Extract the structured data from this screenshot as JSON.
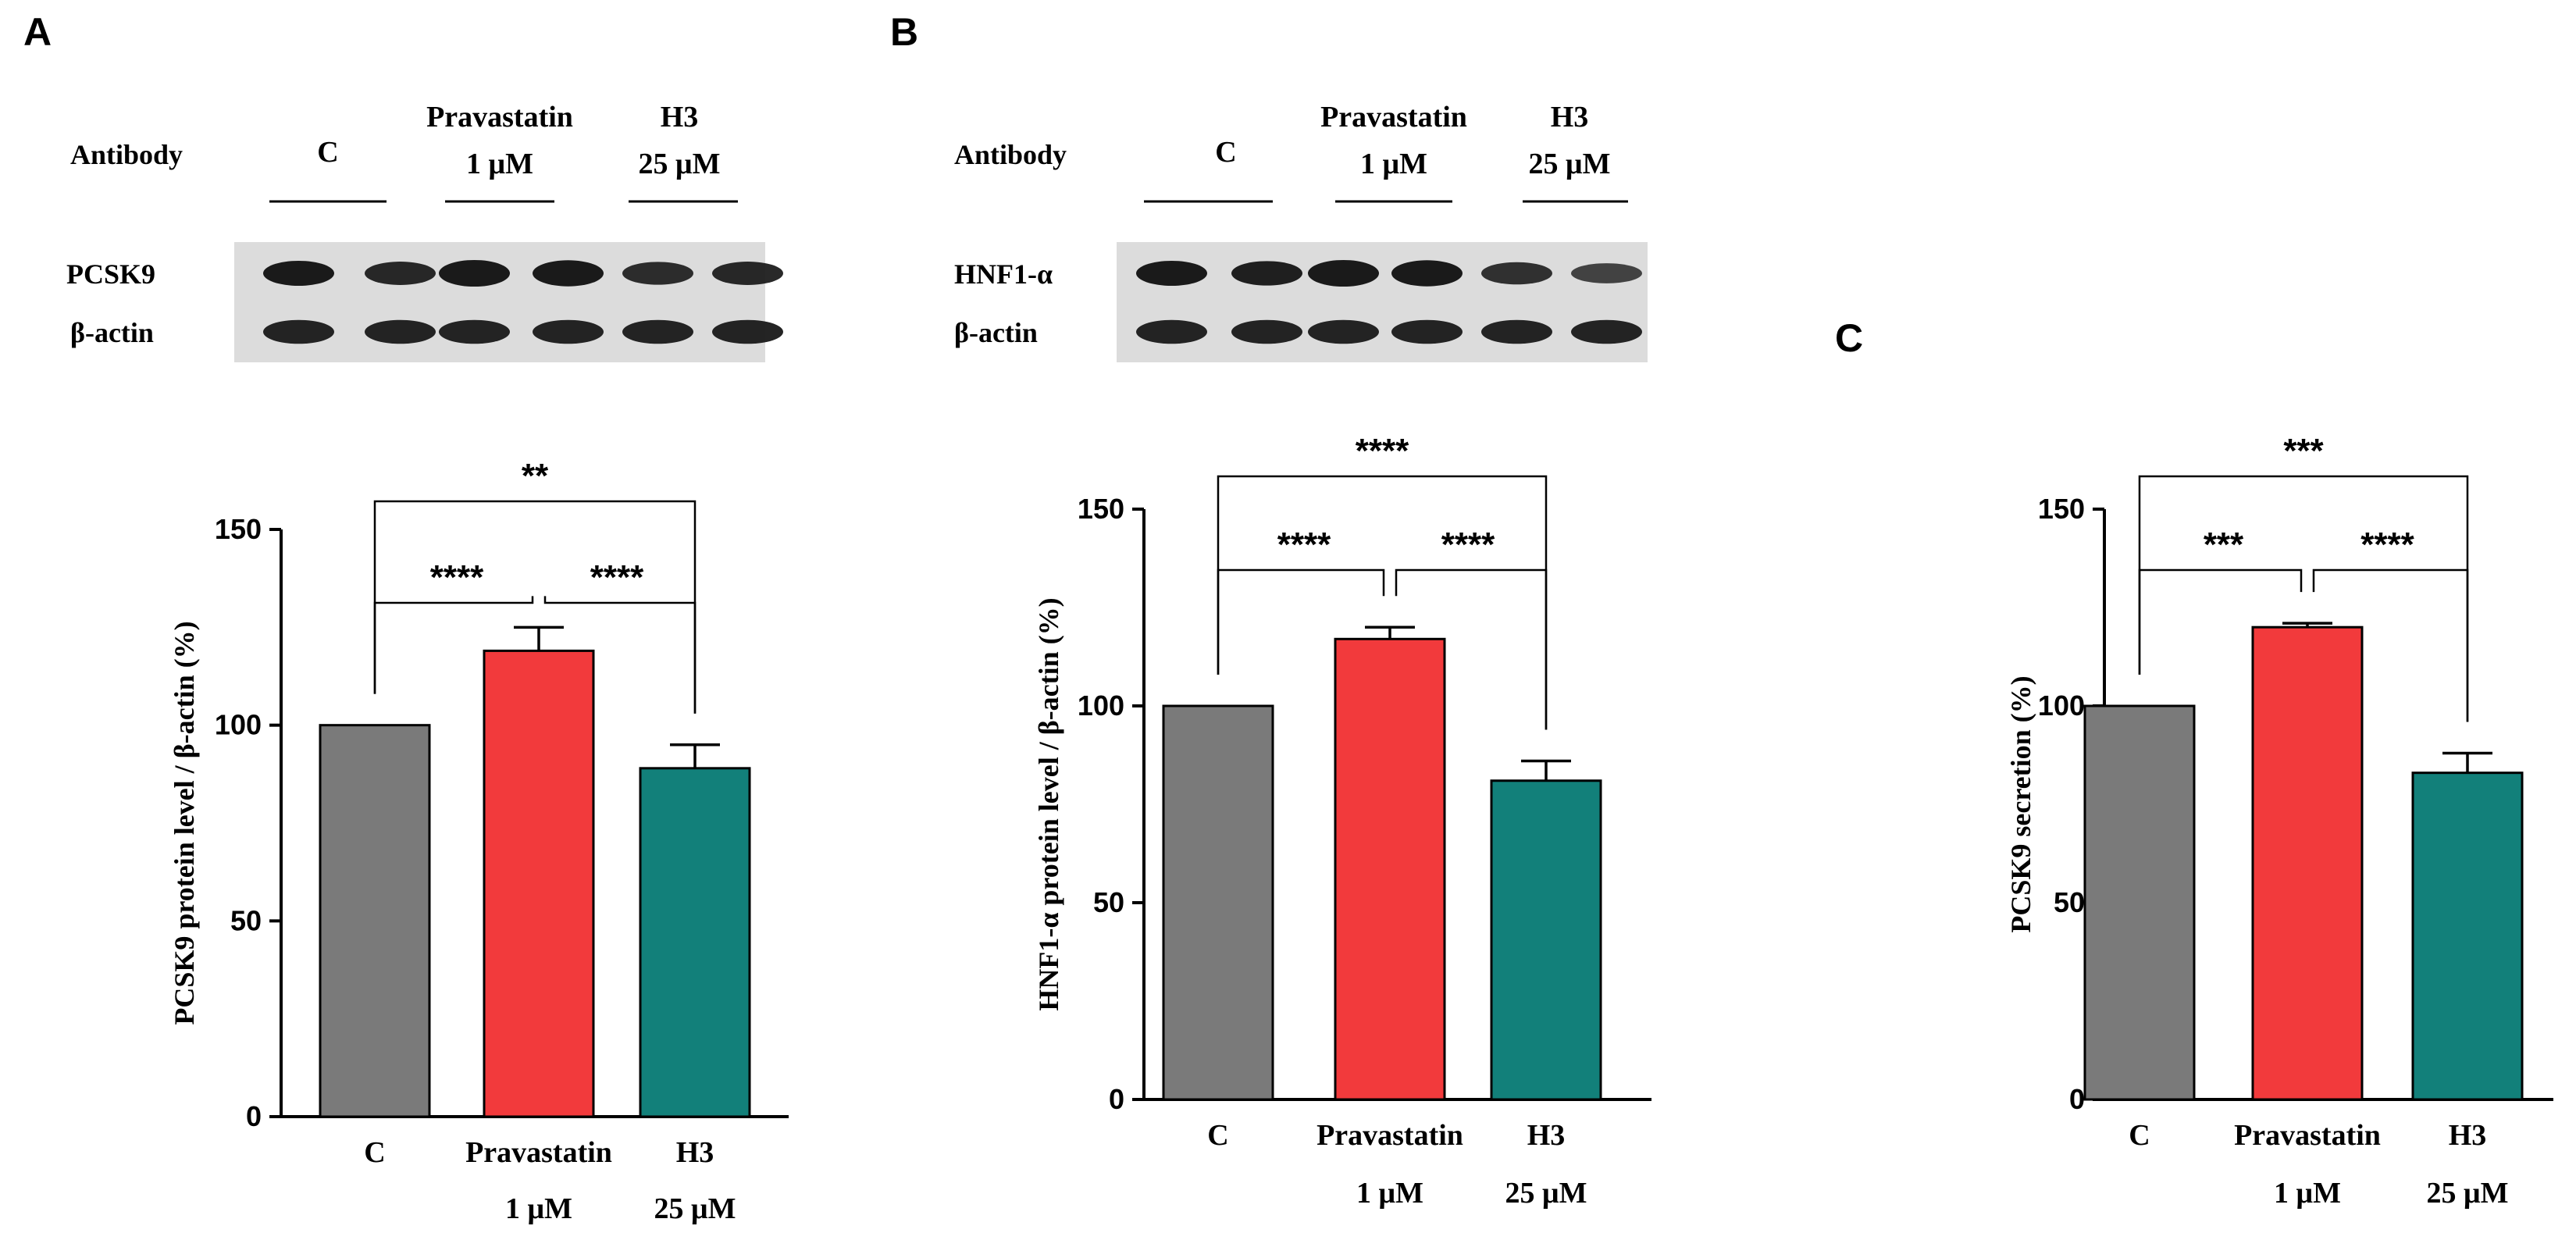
{
  "figure": {
    "colors": {
      "control": "#7a7a7a",
      "pravastatin": "#f23a3c",
      "h3": "#12807a",
      "blot_bg": "#dcdcdc",
      "band": "#1a1a1a"
    }
  },
  "chart_data": [
    {
      "panel": "A",
      "type": "bar",
      "blot": {
        "antibody_label": "Antibody",
        "conditions": [
          {
            "line1": "C",
            "line2": ""
          },
          {
            "line1": "Pravastatin",
            "line2": "1 μM"
          },
          {
            "line1": "H3",
            "line2": "25 μM"
          }
        ],
        "rows": [
          {
            "label": "PCSK9",
            "intensity": [
              1.0,
              0.85,
              1.15,
              1.1,
              0.8,
              0.85
            ]
          },
          {
            "label": "β-actin",
            "intensity": [
              0.9,
              0.9,
              0.9,
              0.9,
              0.9,
              0.9
            ]
          }
        ]
      },
      "categories": [
        {
          "line1": "C",
          "line2": ""
        },
        {
          "line1": "Pravastatin",
          "line2": "1 μM"
        },
        {
          "line1": "H3",
          "line2": "25 μM"
        }
      ],
      "values": [
        100,
        119,
        89
      ],
      "errors": [
        0,
        6,
        6
      ],
      "ylabel": "PCSK9 protein level / β-actin (%)",
      "ylim": [
        0,
        150
      ],
      "yticks": [
        0,
        50,
        100,
        150
      ],
      "significance": [
        {
          "from": 0,
          "to": 1,
          "label": "****"
        },
        {
          "from": 1,
          "to": 2,
          "label": "****"
        },
        {
          "from": 0,
          "to": 2,
          "label": "**"
        }
      ]
    },
    {
      "panel": "B",
      "type": "bar",
      "blot": {
        "antibody_label": "Antibody",
        "conditions": [
          {
            "line1": "C",
            "line2": ""
          },
          {
            "line1": "Pravastatin",
            "line2": "1 μM"
          },
          {
            "line1": "H3",
            "line2": "25 μM"
          }
        ],
        "rows": [
          {
            "label": "HNF1-α",
            "intensity": [
              1.0,
              0.95,
              1.15,
              1.1,
              0.75,
              0.55
            ]
          },
          {
            "label": "β-actin",
            "intensity": [
              0.9,
              0.9,
              0.9,
              0.9,
              0.9,
              0.9
            ]
          }
        ]
      },
      "categories": [
        {
          "line1": "C",
          "line2": ""
        },
        {
          "line1": "Pravastatin",
          "line2": "1 μM"
        },
        {
          "line1": "H3",
          "line2": "25 μM"
        }
      ],
      "values": [
        100,
        117,
        81
      ],
      "errors": [
        0,
        3,
        5
      ],
      "ylabel": "HNF1-α protein level / β-actin (%)",
      "ylim": [
        0,
        150
      ],
      "yticks": [
        0,
        50,
        100,
        150
      ],
      "significance": [
        {
          "from": 0,
          "to": 1,
          "label": "****"
        },
        {
          "from": 1,
          "to": 2,
          "label": "****"
        },
        {
          "from": 0,
          "to": 2,
          "label": "****"
        }
      ]
    },
    {
      "panel": "C",
      "type": "bar",
      "categories": [
        {
          "line1": "C",
          "line2": ""
        },
        {
          "line1": "Pravastatin",
          "line2": "1 μM"
        },
        {
          "line1": "H3",
          "line2": "25 μM"
        }
      ],
      "values": [
        100,
        120,
        83
      ],
      "errors": [
        0,
        1,
        5
      ],
      "ylabel": "PCSK9 secretion (%)",
      "ylim": [
        0,
        150
      ],
      "yticks": [
        0,
        50,
        100,
        150
      ],
      "significance": [
        {
          "from": 0,
          "to": 1,
          "label": "***"
        },
        {
          "from": 1,
          "to": 2,
          "label": "****"
        },
        {
          "from": 0,
          "to": 2,
          "label": "***"
        }
      ]
    }
  ]
}
